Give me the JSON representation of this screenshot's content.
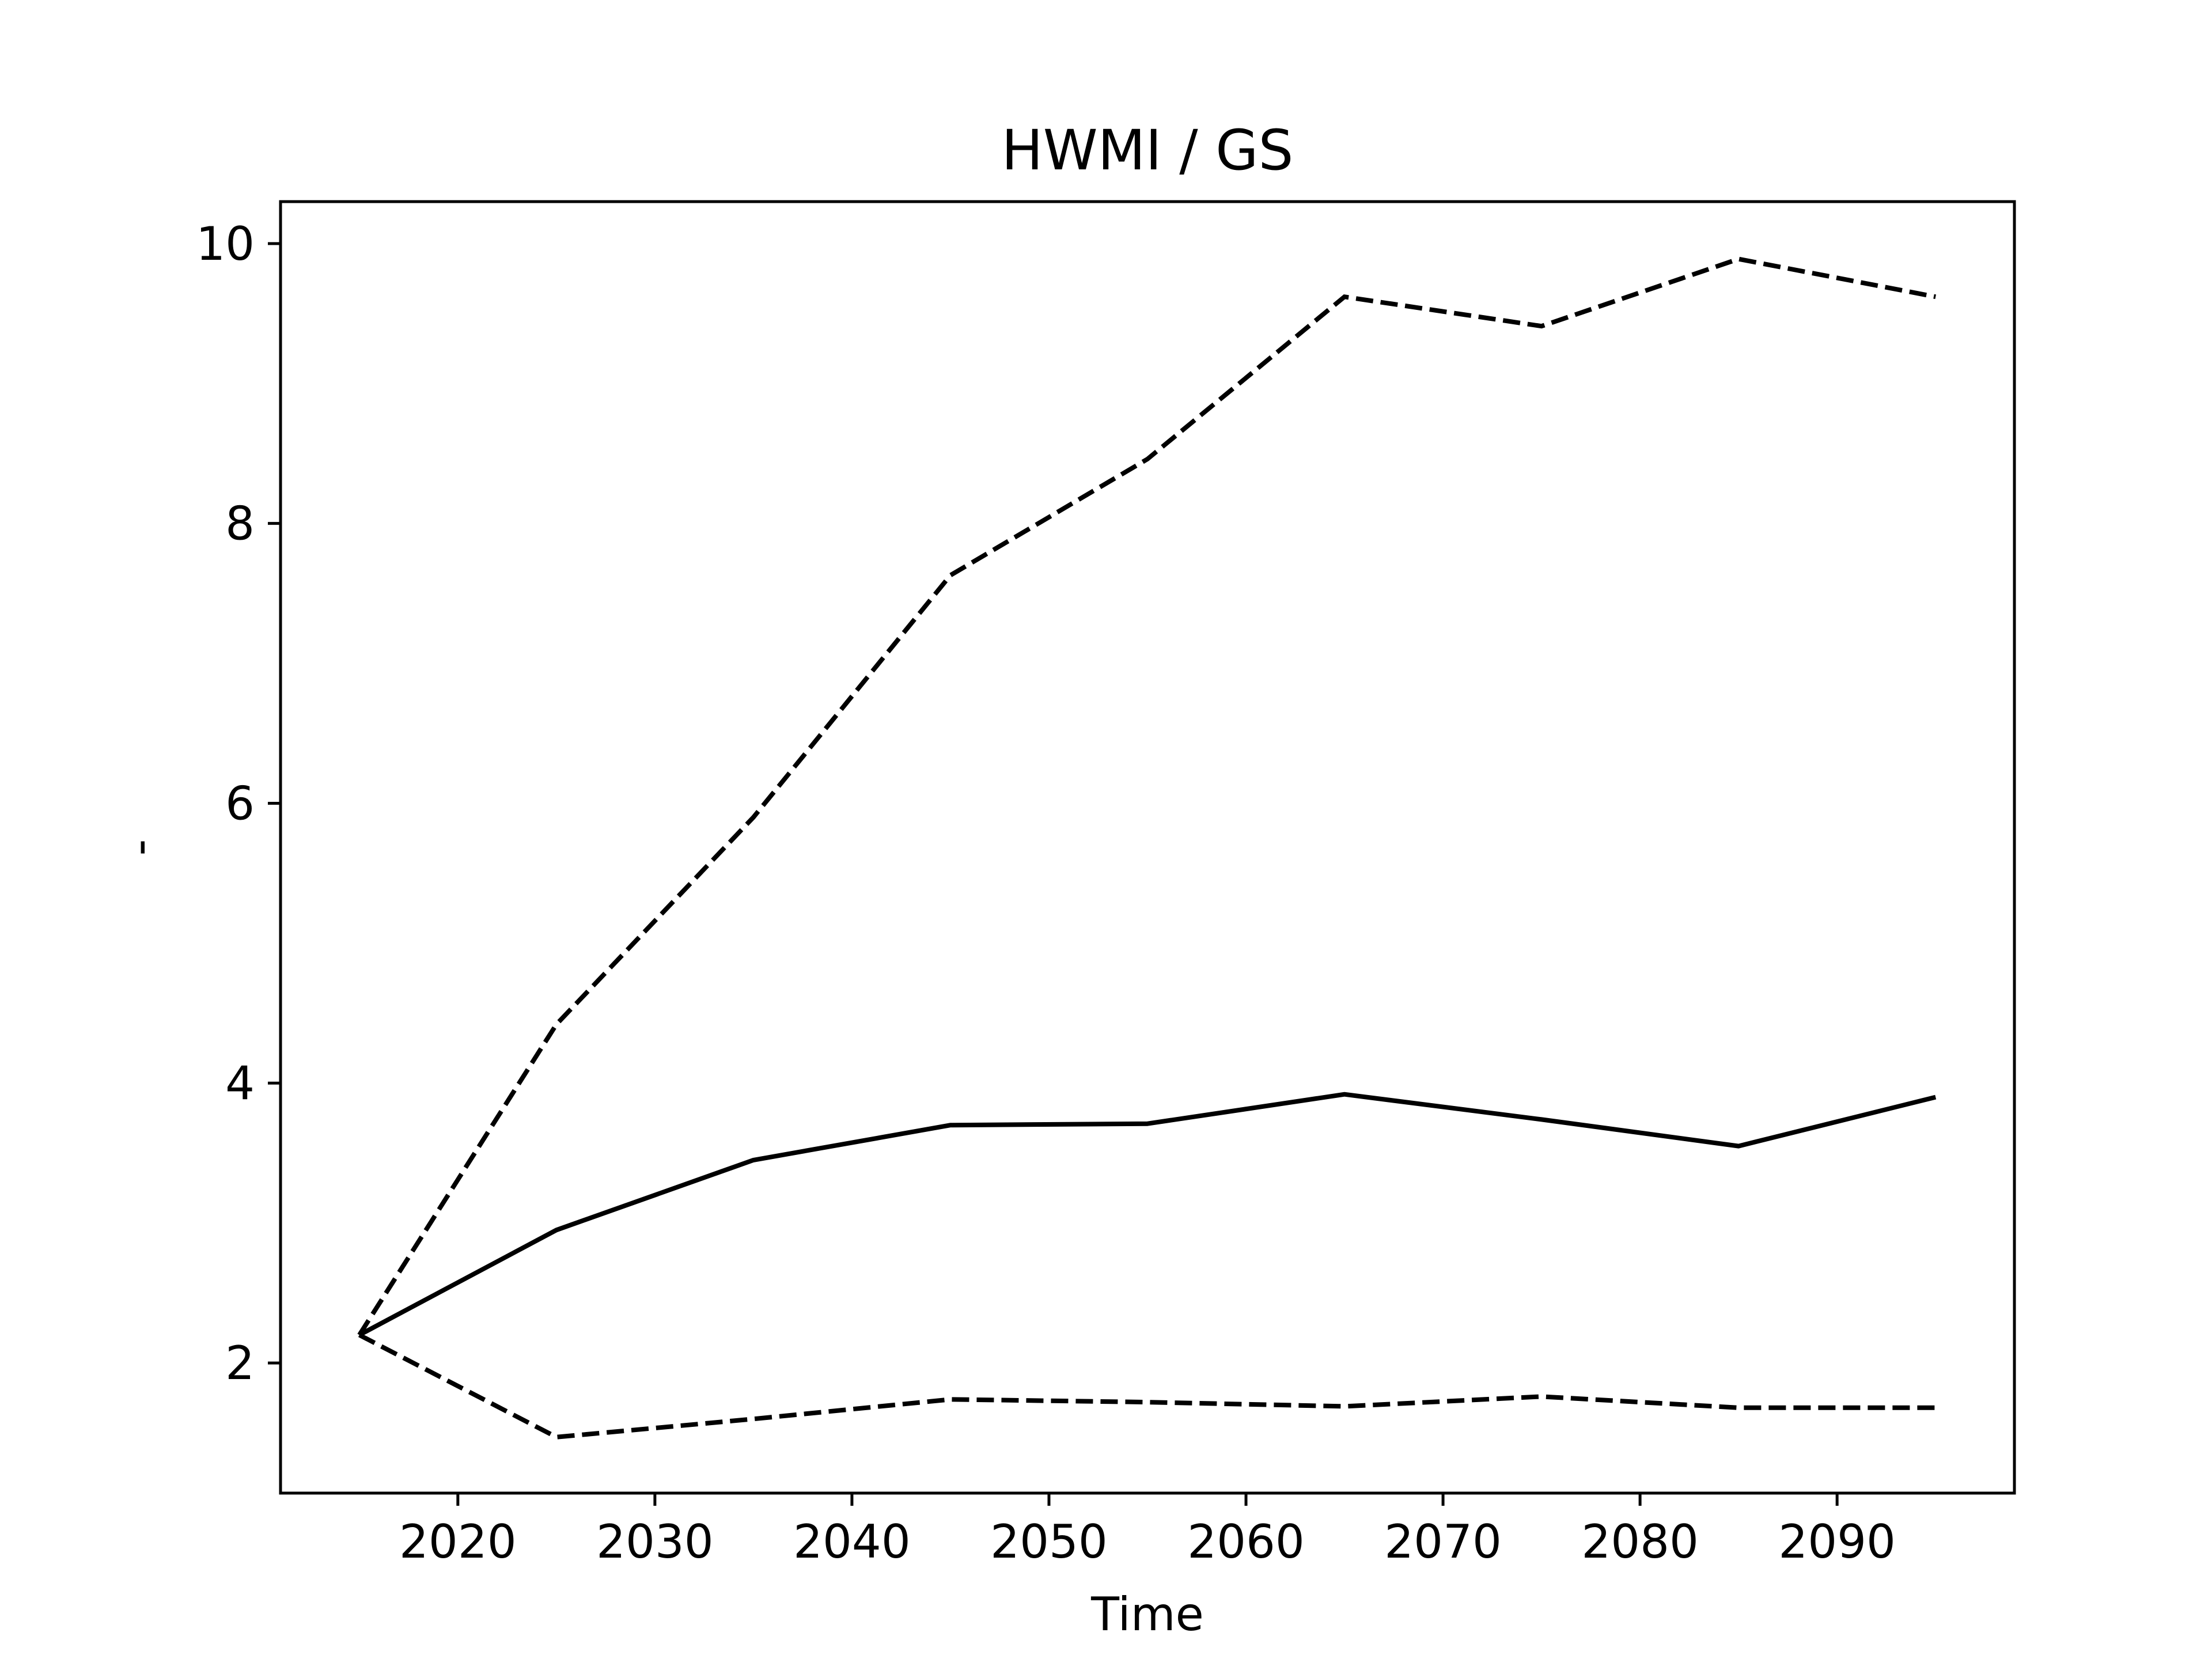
{
  "chart_data": {
    "type": "line",
    "title": "HWMI / GS",
    "xlabel": "Time",
    "ylabel": "-",
    "xlim": [
      2011,
      2099
    ],
    "ylim": [
      1.07,
      10.3
    ],
    "xticks": [
      2020,
      2030,
      2040,
      2050,
      2060,
      2070,
      2080,
      2090
    ],
    "yticks": [
      2,
      4,
      6,
      8,
      10
    ],
    "grid": false,
    "x": [
      2015,
      2025,
      2035,
      2045,
      2055,
      2065,
      2075,
      2085,
      2095
    ],
    "series": [
      {
        "style": "dashed",
        "color": "#000000",
        "values": [
          2.2,
          4.42,
          5.9,
          7.63,
          8.46,
          9.62,
          9.41,
          9.89,
          9.62
        ]
      },
      {
        "style": "solid",
        "color": "#000000",
        "values": [
          2.2,
          2.95,
          3.45,
          3.7,
          3.71,
          3.92,
          3.74,
          3.55,
          3.9
        ]
      },
      {
        "style": "dashed",
        "color": "#000000",
        "values": [
          2.2,
          1.47,
          1.6,
          1.74,
          1.72,
          1.69,
          1.76,
          1.68,
          1.68
        ]
      }
    ]
  }
}
